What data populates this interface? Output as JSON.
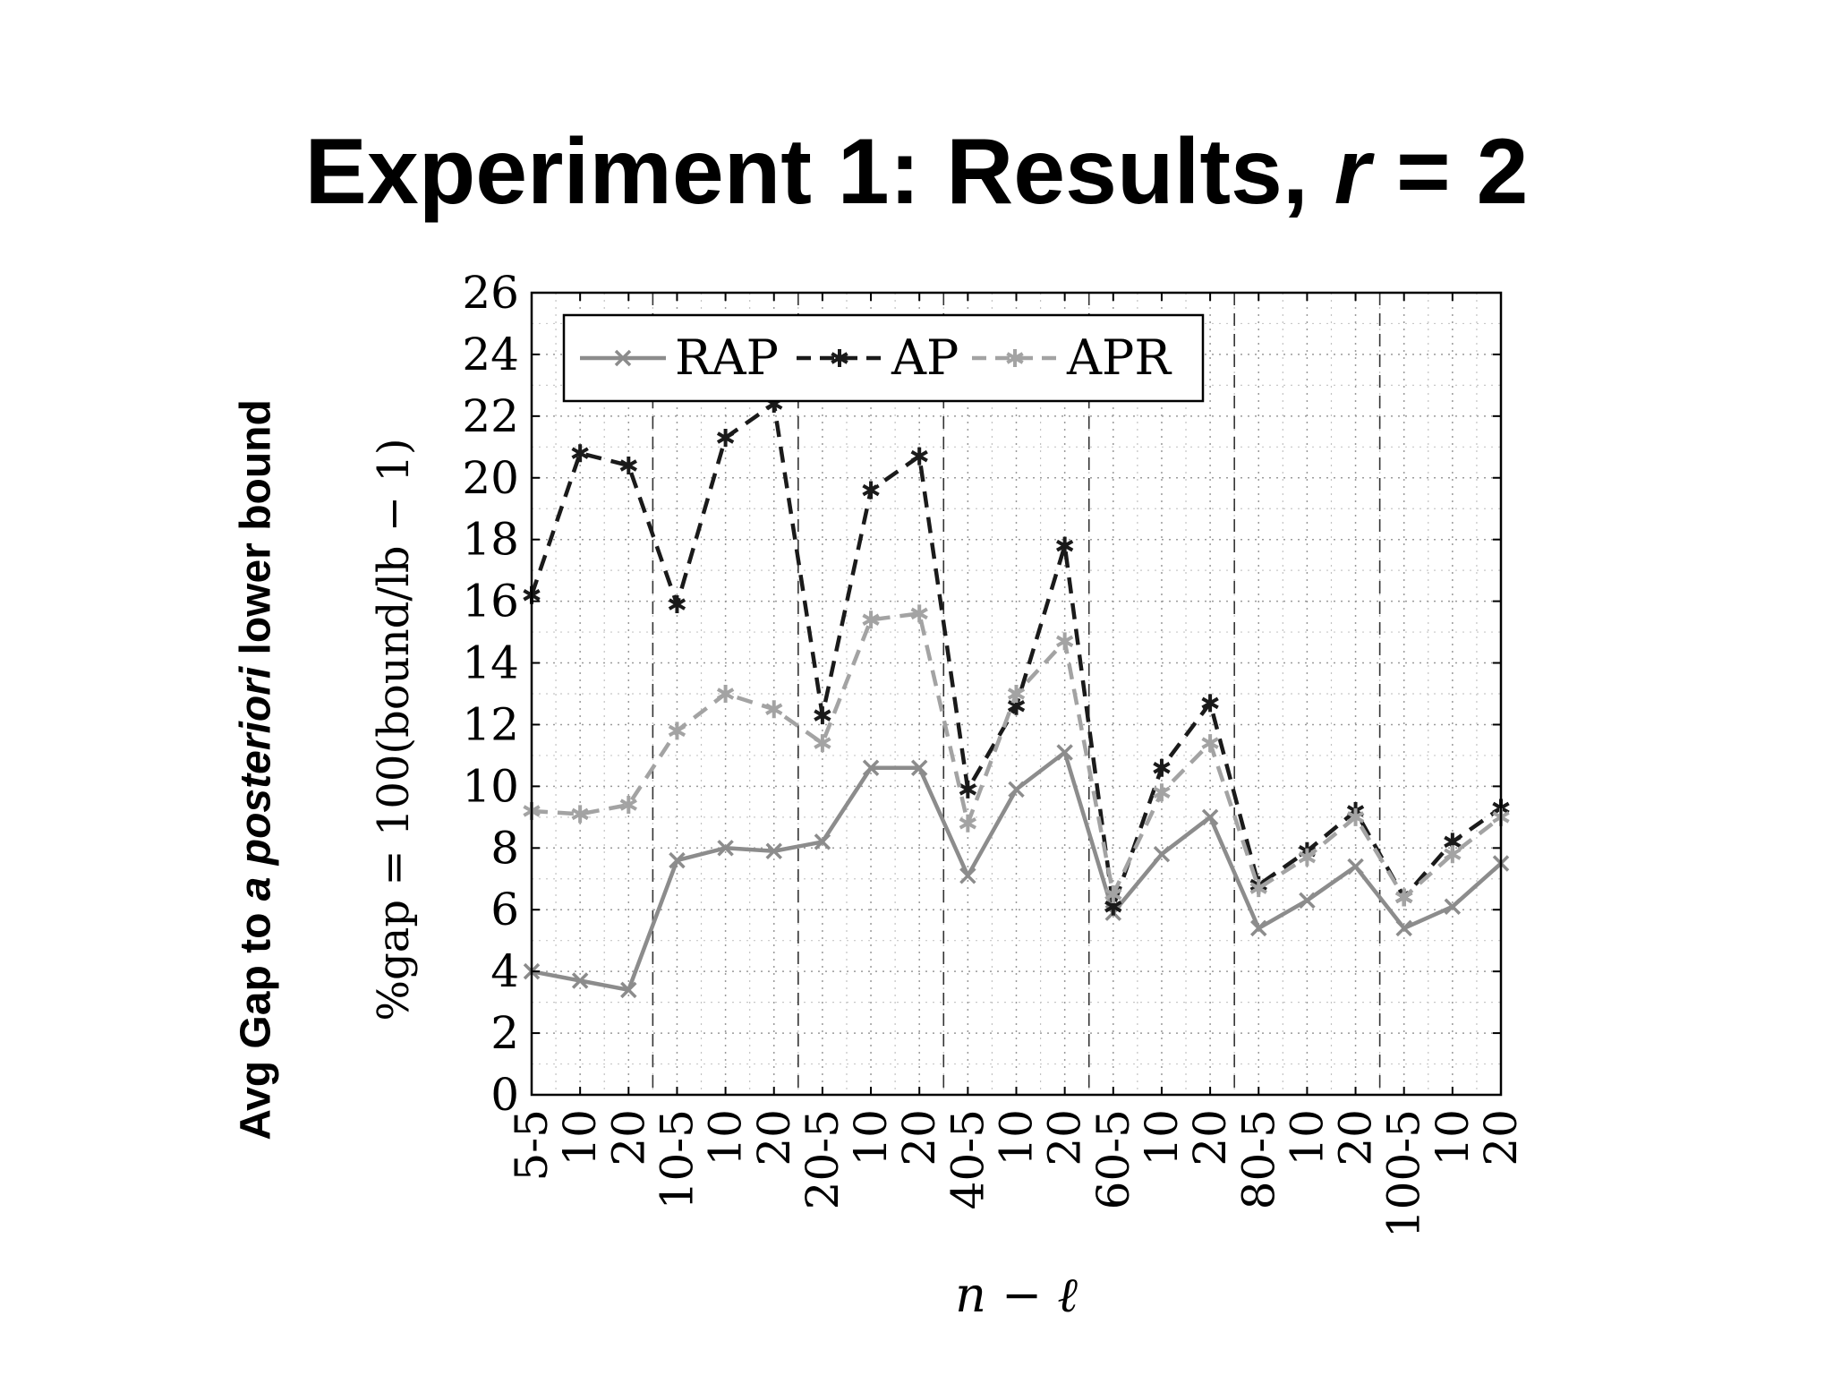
{
  "slide": {
    "title_prefix": "Experiment 1: Results, ",
    "title_var": "r",
    "title_suffix": " = 2",
    "side_label_prefix": "Avg Gap to ",
    "side_label_emph": "a posteriori",
    "side_label_suffix": " lower bound"
  },
  "chart_data": {
    "type": "line",
    "ylabel": "%gap = 100(bound/lb − 1)",
    "xlabel": "n − ℓ",
    "ylim": [
      0,
      26
    ],
    "yticks": [
      0,
      2,
      4,
      6,
      8,
      10,
      12,
      14,
      16,
      18,
      20,
      22,
      24,
      26
    ],
    "categories": [
      "5-5",
      "10",
      "20",
      "10-5",
      "10",
      "20",
      "20-5",
      "10",
      "20",
      "40-5",
      "10",
      "20",
      "60-5",
      "10",
      "20",
      "80-5",
      "10",
      "20",
      "100-5",
      "10",
      "20"
    ],
    "group_separators_after": [
      2,
      5,
      8,
      11,
      14,
      17
    ],
    "grid": true,
    "legend_position": "top-left",
    "series": [
      {
        "name": "RAP",
        "color": "#8c8c8c",
        "dash": "solid",
        "marker": "x",
        "values": [
          4.0,
          3.7,
          3.4,
          7.6,
          8.0,
          7.9,
          8.2,
          10.6,
          10.6,
          7.1,
          9.9,
          11.1,
          5.9,
          7.8,
          9.0,
          5.4,
          6.3,
          7.4,
          5.4,
          6.1,
          7.5
        ]
      },
      {
        "name": "AP",
        "color": "#1a1a1a",
        "dash": "dashed",
        "marker": "star",
        "values": [
          16.2,
          20.8,
          20.4,
          15.9,
          21.3,
          22.4,
          12.3,
          19.6,
          20.7,
          9.9,
          12.6,
          17.8,
          6.1,
          10.6,
          12.7,
          6.8,
          7.9,
          9.2,
          6.4,
          8.2,
          9.3
        ]
      },
      {
        "name": "APR",
        "color": "#a3a3a3",
        "dash": "dashed",
        "marker": "star",
        "values": [
          9.2,
          9.1,
          9.4,
          11.8,
          13.0,
          12.5,
          11.4,
          15.4,
          15.6,
          8.8,
          13.0,
          14.7,
          6.5,
          9.8,
          11.4,
          6.7,
          7.7,
          9.0,
          6.4,
          7.8,
          9.0
        ]
      }
    ]
  }
}
